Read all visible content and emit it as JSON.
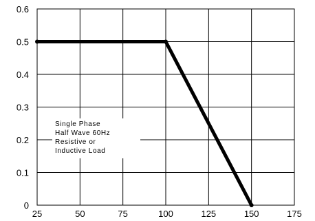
{
  "chart_data": {
    "type": "line",
    "title": "",
    "xlabel": "",
    "ylabel": "",
    "xlim": [
      25,
      175
    ],
    "ylim": [
      0,
      0.6
    ],
    "grid": true,
    "x_ticks": [
      25,
      50,
      75,
      100,
      125,
      150,
      175
    ],
    "x_tick_labels": [
      "25",
      "50",
      "75",
      "100",
      "125",
      "150",
      "175"
    ],
    "y_ticks": [
      0,
      0.1,
      0.2,
      0.3,
      0.4,
      0.5,
      0.6
    ],
    "y_tick_labels": [
      "0",
      "0.1",
      "0.2",
      "0.3",
      "0.4",
      "0.5",
      "0.6"
    ],
    "series": [
      {
        "x": [
          25,
          100,
          150
        ],
        "y": [
          0.5,
          0.5,
          0
        ]
      }
    ],
    "annotation": {
      "lines": [
        "Single Phase",
        "Half Wave 60Hz",
        "Resistive or",
        "Inductive Load"
      ]
    },
    "colors": {
      "line": "#000000",
      "grid": "#000000",
      "background": "#ffffff"
    }
  }
}
